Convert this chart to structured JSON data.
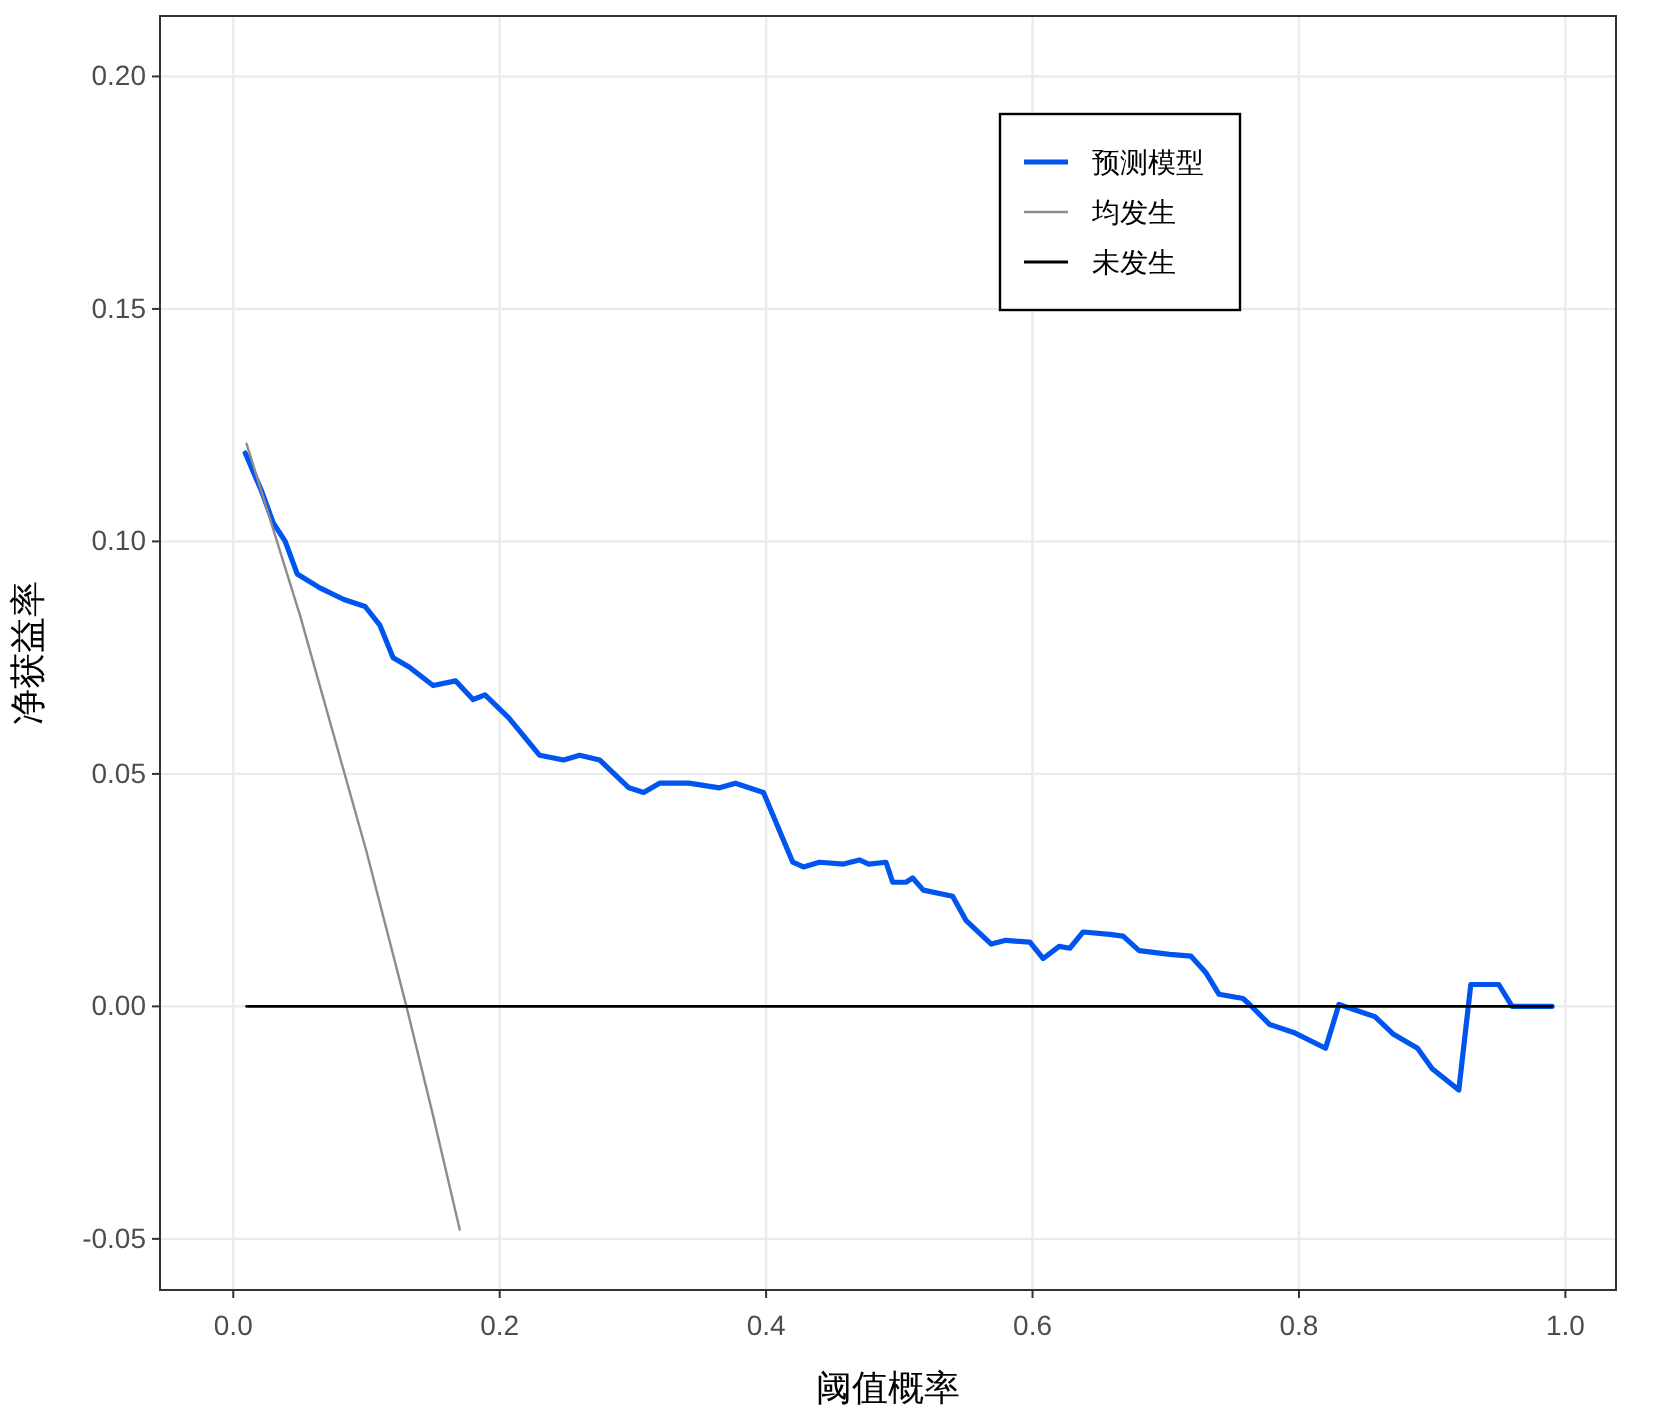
{
  "chart_data": {
    "type": "line",
    "xlabel": "阈值概率",
    "ylabel": "净获益率",
    "xlim": [
      -0.055,
      1.038
    ],
    "ylim": [
      -0.061,
      0.213
    ],
    "xticks": [
      {
        "value": 0,
        "label": "0.0"
      },
      0.2,
      0.4,
      0.6,
      0.8,
      {
        "value": 1,
        "label": "1.0"
      }
    ],
    "yticks": [
      -0.05,
      {
        "value": 0,
        "label": "0.00"
      },
      0.05,
      {
        "value": 0.1,
        "label": "0.10"
      },
      0.15,
      {
        "value": 0.2,
        "label": "0.20"
      }
    ],
    "grid": true,
    "legend": "top right",
    "line_style": "solid",
    "marker": "none",
    "series": [
      {
        "name": "预测模型",
        "color": "#0055ee",
        "x": [
          0.009,
          0.021,
          0.03,
          0.039,
          0.048,
          0.065,
          0.083,
          0.099,
          0.11,
          0.12,
          0.132,
          0.15,
          0.167,
          0.18,
          0.189,
          0.207,
          0.23,
          0.248,
          0.26,
          0.275,
          0.297,
          0.308,
          0.32,
          0.342,
          0.365,
          0.377,
          0.398,
          0.42,
          0.428,
          0.44,
          0.458,
          0.47,
          0.477,
          0.49,
          0.495,
          0.505,
          0.51,
          0.518,
          0.54,
          0.55,
          0.569,
          0.58,
          0.598,
          0.608,
          0.62,
          0.628,
          0.638,
          0.658,
          0.668,
          0.68,
          0.703,
          0.719,
          0.73,
          0.74,
          0.758,
          0.763,
          0.778,
          0.796,
          0.82,
          0.83,
          0.857,
          0.871,
          0.889,
          0.9,
          0.92,
          0.929,
          0.95,
          0.96,
          0.99
        ],
        "values": [
          0.119,
          0.111,
          0.104,
          0.1,
          0.093,
          0.09,
          0.0875,
          0.086,
          0.082,
          0.075,
          0.073,
          0.069,
          0.07,
          0.066,
          0.067,
          0.062,
          0.054,
          0.053,
          0.054,
          0.053,
          0.047,
          0.046,
          0.048,
          0.048,
          0.047,
          0.048,
          0.046,
          0.031,
          0.03,
          0.031,
          0.0306,
          0.0315,
          0.0306,
          0.031,
          0.0267,
          0.0267,
          0.0276,
          0.025,
          0.0237,
          0.0185,
          0.0134,
          0.0142,
          0.0138,
          0.0103,
          0.0129,
          0.0125,
          0.016,
          0.0155,
          0.0151,
          0.012,
          0.0112,
          0.0108,
          0.0073,
          0.0026,
          0.0017,
          0.0004,
          -0.0039,
          -0.0056,
          -0.009,
          0.0004,
          -0.0022,
          -0.006,
          -0.009,
          -0.0134,
          -0.018,
          0.0047,
          0.0047,
          0,
          0
        ]
      },
      {
        "name": "均发生",
        "color": "#8c8c8c",
        "x": [
          0.01,
          0.05,
          0.1,
          0.13,
          0.15,
          0.17
        ],
        "values": [
          0.121,
          0.0842,
          0.0333,
          0.0,
          -0.0235,
          -0.048
        ]
      },
      {
        "name": "未发生",
        "color": "#000000",
        "x": [
          0.01,
          0.99
        ],
        "values": [
          0,
          0
        ]
      }
    ]
  }
}
